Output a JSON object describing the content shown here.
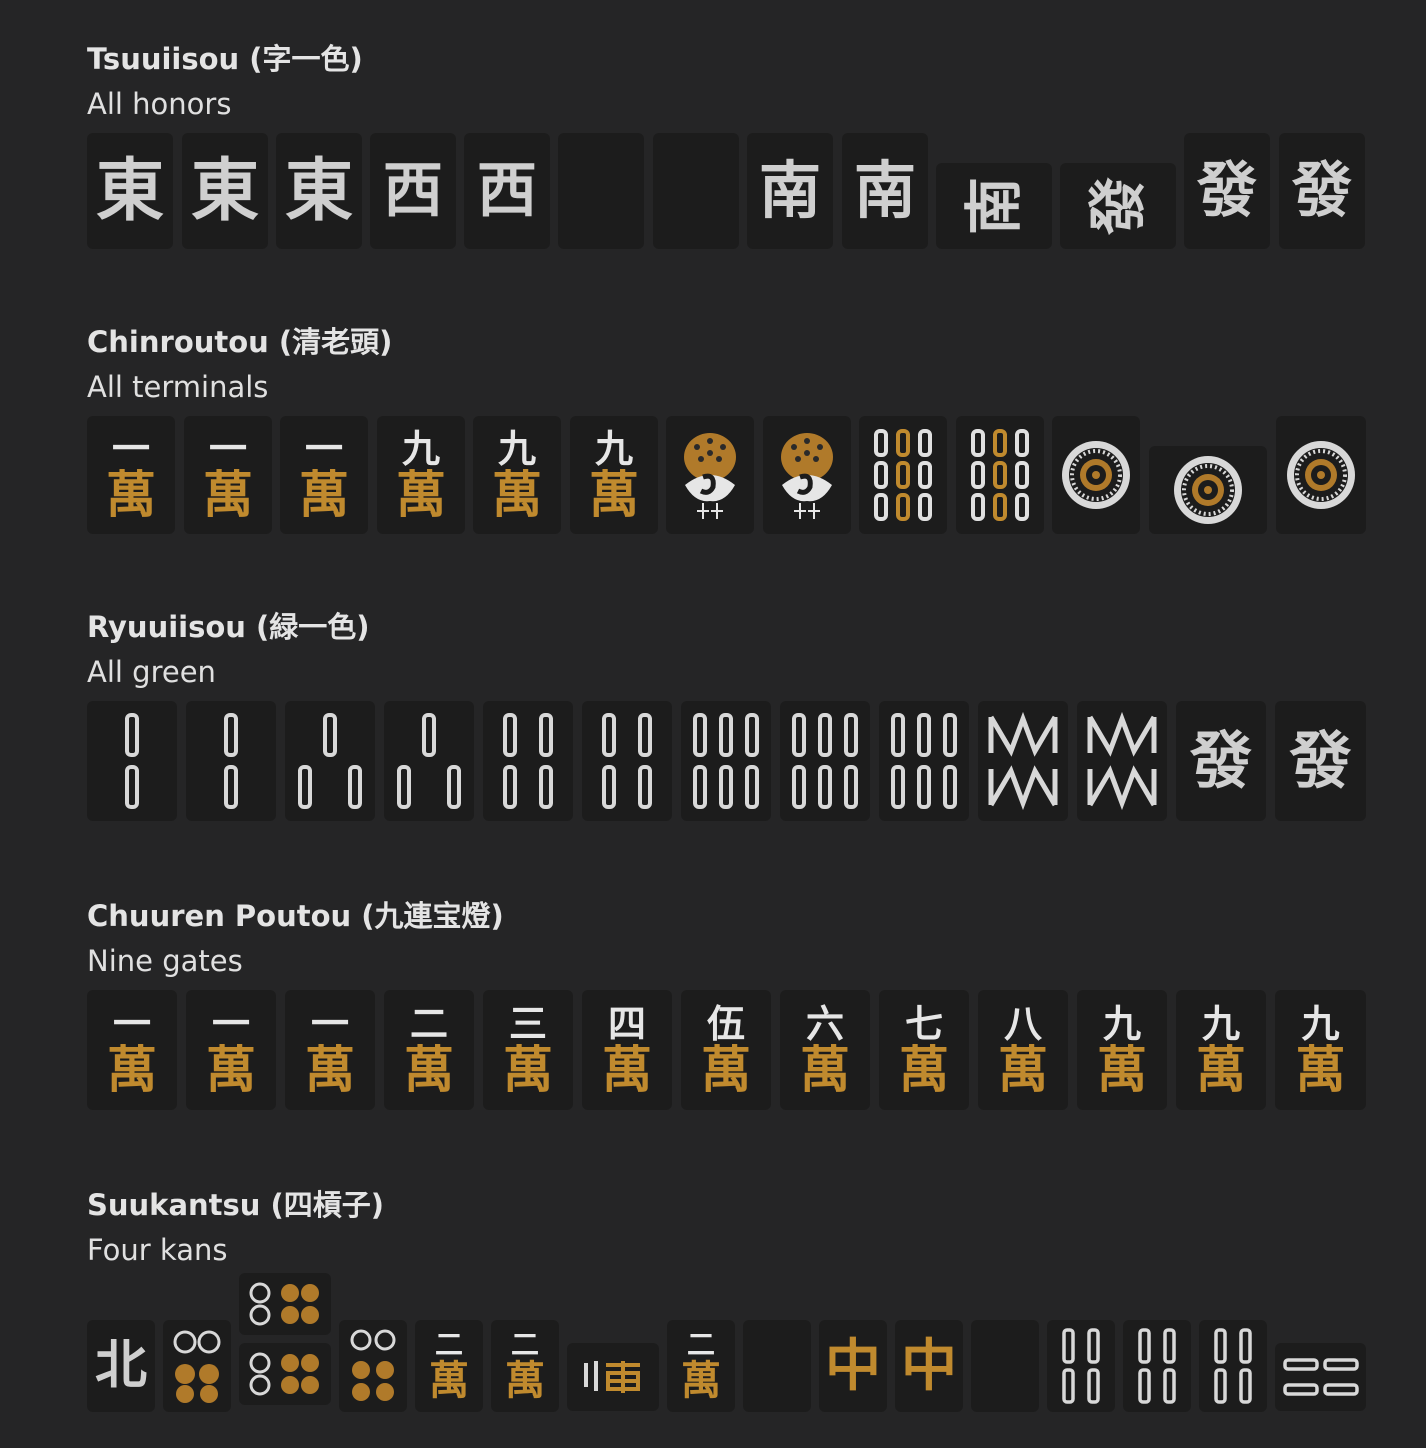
{
  "sections": [
    {
      "title": "Tsuuiisou (字一色)",
      "subtitle": "All honors",
      "tiles": [
        "東",
        "東",
        "東",
        "西",
        "西",
        "",
        "",
        "南",
        "南",
        "南",
        "發",
        "發",
        "發"
      ]
    },
    {
      "title": "Chinroutou (清老頭)",
      "subtitle": "All terminals",
      "tiles": [
        "一",
        "萬",
        "一",
        "萬",
        "一",
        "萬",
        "九",
        "萬",
        "九",
        "萬",
        "九",
        "萬"
      ]
    },
    {
      "title": "Ryuuiisou (緑一色)",
      "subtitle": "All green",
      "tiles": [
        "發",
        "發"
      ]
    },
    {
      "title": "Chuuren Poutou (九連宝燈)",
      "subtitle": "Nine gates",
      "tiles": [
        "一",
        "萬",
        "一",
        "萬",
        "一",
        "萬",
        "二",
        "萬",
        "三",
        "萬",
        "四",
        "萬",
        "伍",
        "萬",
        "六",
        "萬",
        "七",
        "萬",
        "八",
        "萬",
        "九",
        "萬",
        "九",
        "萬",
        "九",
        "萬"
      ]
    },
    {
      "title": "Suukantsu (四槓子)",
      "subtitle": "Four kans",
      "tiles": [
        "北",
        "二",
        "萬",
        "二",
        "萬",
        "二",
        "萬",
        "中",
        "中"
      ]
    }
  ],
  "colors": {
    "background": "#252526",
    "tile": "#1c1c1c",
    "gold": "#c08a2e",
    "glyph": "#cfcfcf"
  }
}
